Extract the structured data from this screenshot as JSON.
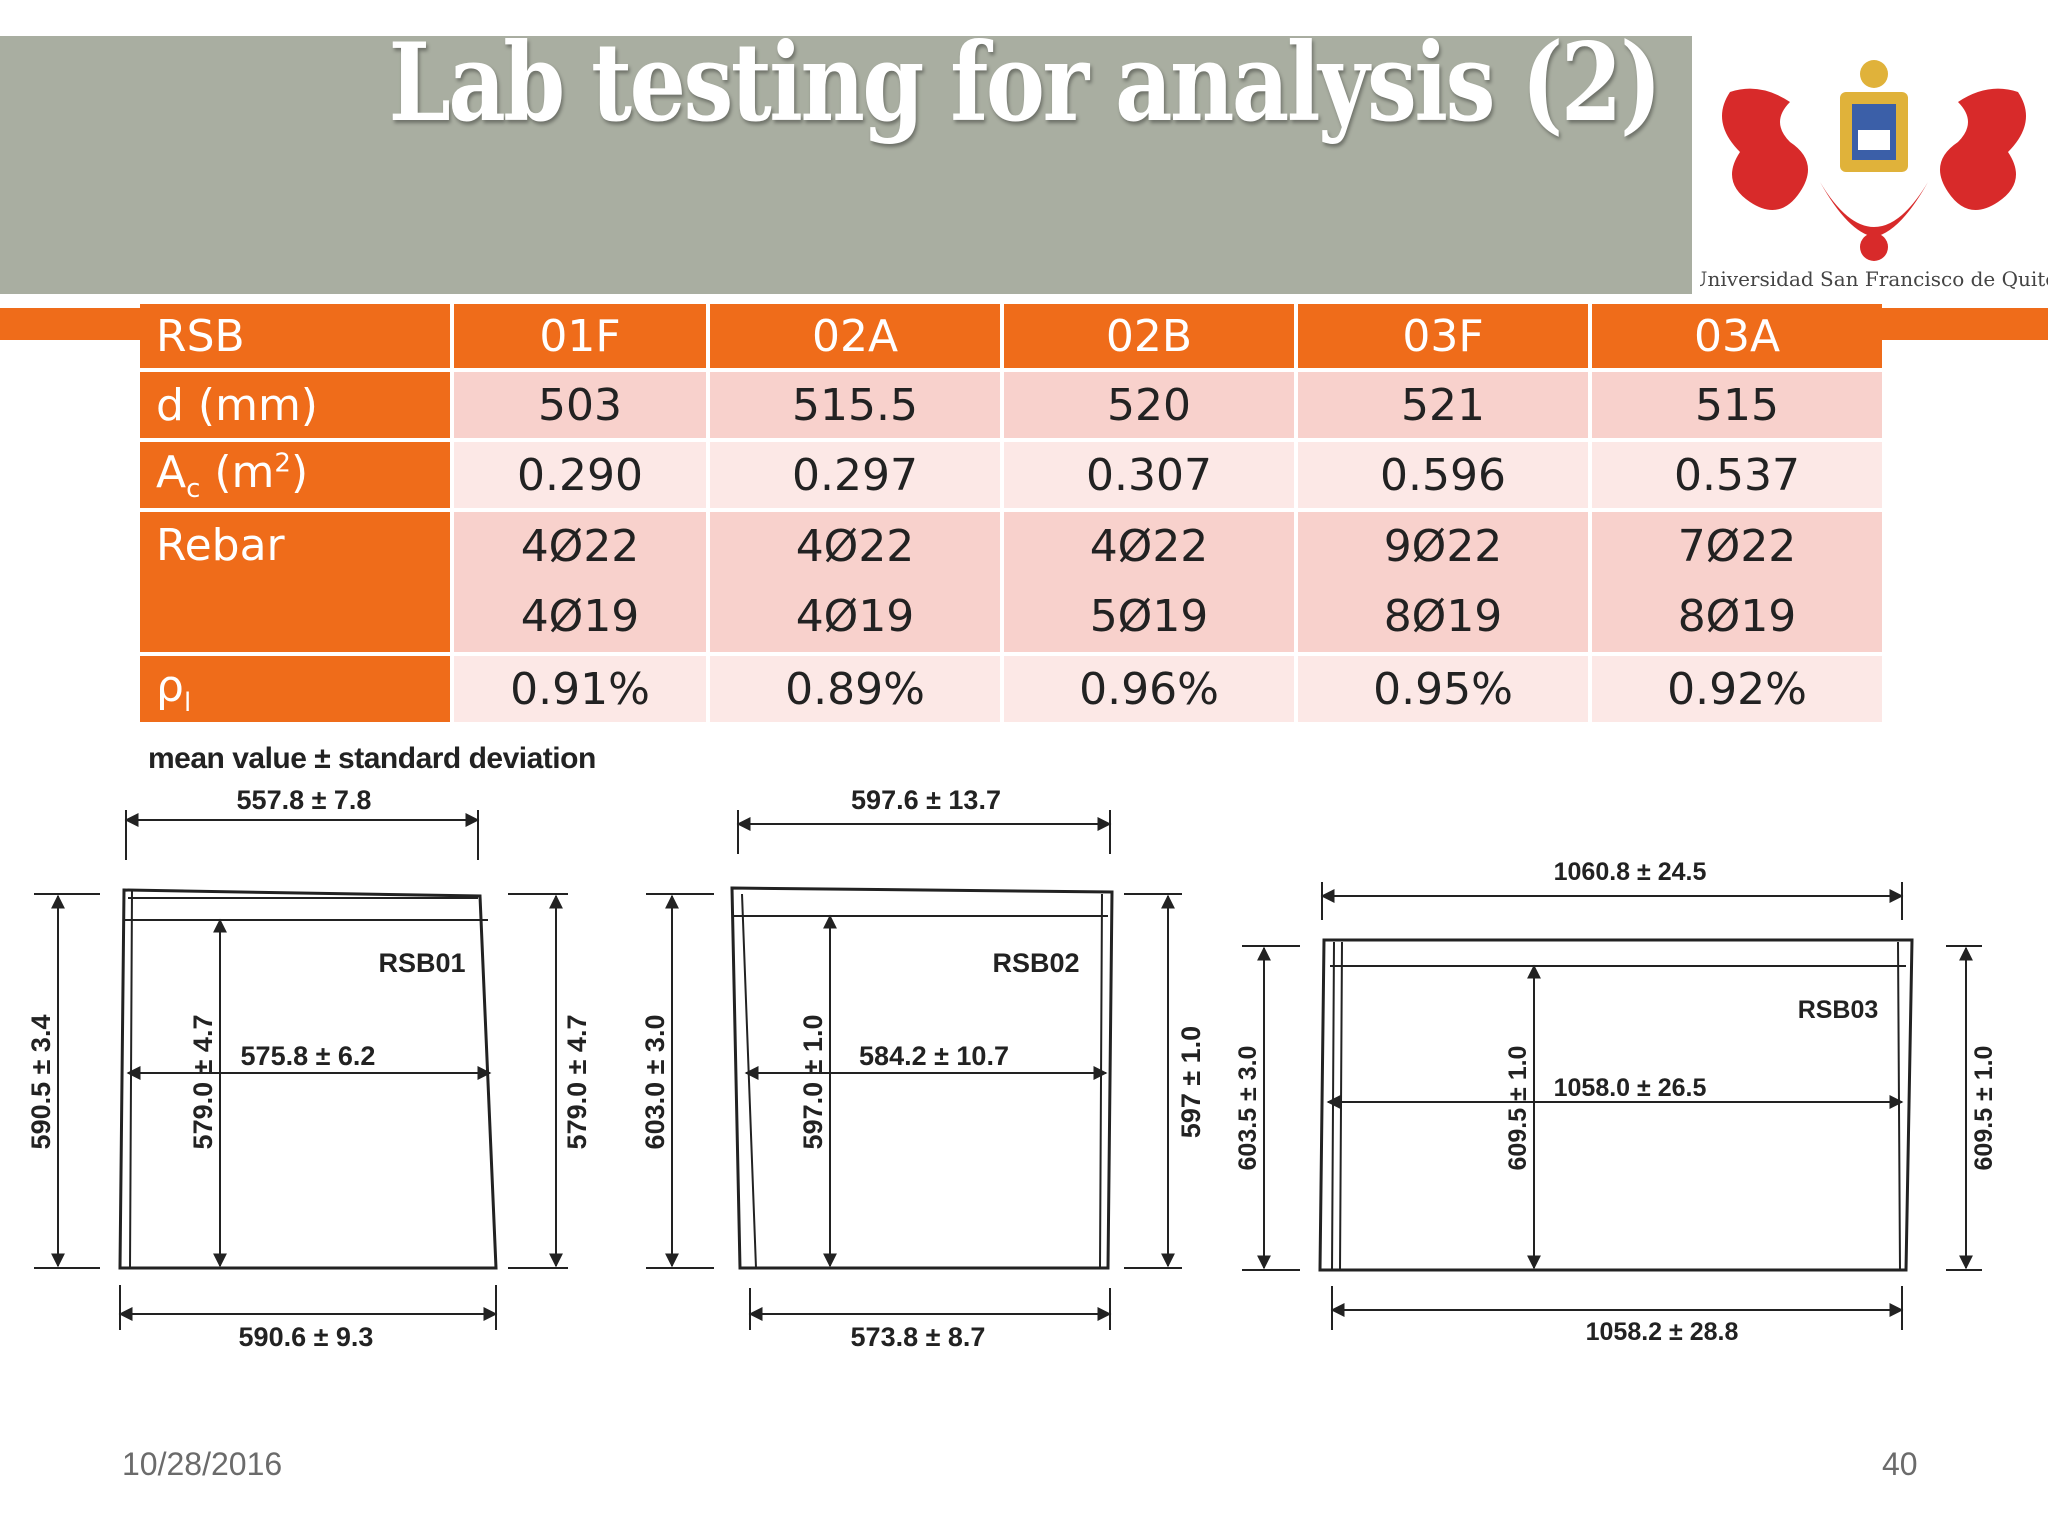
{
  "title": "Lab testing for analysis (2)",
  "logo": {
    "caption": "Universidad San Francisco de Quito",
    "colors": {
      "red": "#d82a2a",
      "gold": "#e0b23a"
    }
  },
  "table": {
    "header": [
      "RSB",
      "01F",
      "02A",
      "02B",
      "03F",
      "03A"
    ],
    "rows": {
      "d": {
        "label": "d (mm)",
        "values": [
          "503",
          "515.5",
          "520",
          "521",
          "515"
        ]
      },
      "ac": {
        "label_main": "A",
        "label_sub": "c",
        "label_mid": " (m",
        "label_sup": "2",
        "label_end": ")",
        "values": [
          "0.290",
          "0.297",
          "0.307",
          "0.596",
          "0.537"
        ]
      },
      "rebar": {
        "label": "Rebar",
        "line1": [
          "4Ø22",
          "4Ø22",
          "4Ø22",
          "9Ø22",
          "7Ø22"
        ],
        "line2": [
          "4Ø19",
          "4Ø19",
          "5Ø19",
          "8Ø19",
          "8Ø19"
        ]
      },
      "rho": {
        "label_main": "ρ",
        "label_sub": "l",
        "values": [
          "0.91%",
          "0.89%",
          "0.96%",
          "0.95%",
          "0.92%"
        ]
      }
    }
  },
  "diagram": {
    "legend": "mean value ± standard deviation",
    "rsb01": {
      "name": "RSB01",
      "top": "557.8 ± 7.8",
      "mid": "575.8 ± 6.2",
      "bottom": "590.6 ± 9.3",
      "left": "590.5 ± 3.4",
      "inner": "579.0 ± 4.7",
      "right": "579.0 ± 4.7"
    },
    "rsb02": {
      "name": "RSB02",
      "top": "597.6 ± 13.7",
      "mid": "584.2 ± 10.7",
      "bottom": "573.8 ± 8.7",
      "left": "603.0 ± 3.0",
      "inner": "597.0 ± 1.0",
      "right": "597 ± 1.0"
    },
    "rsb03": {
      "name": "RSB03",
      "top": "1060.8 ± 24.5",
      "mid": "1058.0 ± 26.5",
      "bottom": "1058.2 ± 28.8",
      "left": "603.5 ± 3.0",
      "inner": "609.5 ± 1.0",
      "right": "609.5 ± 1.0"
    }
  },
  "footer": {
    "date": "10/28/2016",
    "page": "40"
  },
  "colors": {
    "accent": "#ef6c1a",
    "band": "#a9aea1",
    "row_dark": "#f8d1cc",
    "row_light": "#fce8e6"
  }
}
